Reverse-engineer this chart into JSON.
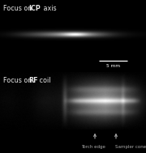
{
  "fig_width": 1.8,
  "fig_height": 1.89,
  "dpi": 100,
  "bg_color": "#000000",
  "text_color": "#e8e8e8",
  "annotation_color": "#aaaaaa",
  "scale_bar_text": "5 mm",
  "arrow1_label": "Torch edge",
  "arrow2_label": "Sampler cone",
  "panel1_split": 0.505,
  "panel2_split": 0.32
}
